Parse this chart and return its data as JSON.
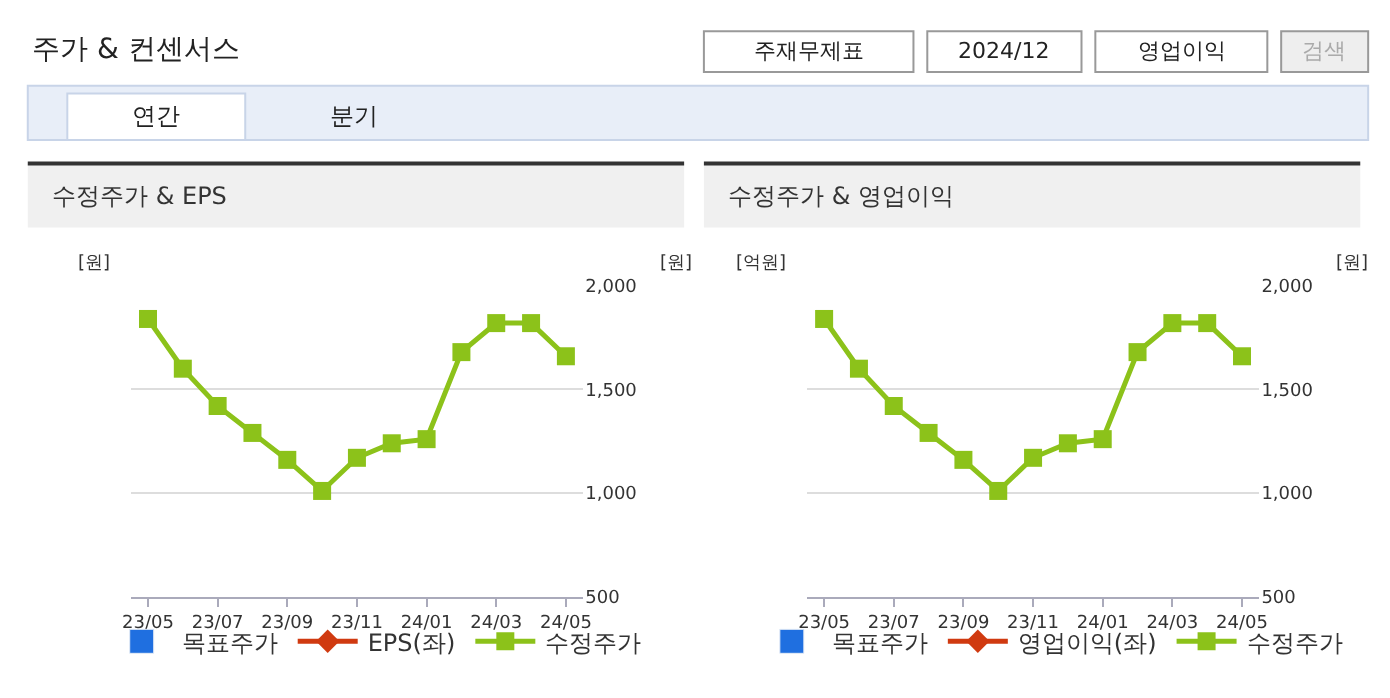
{
  "chart_data": [
    {
      "type": "other",
      "title": "주가 & 컨센서스",
      "annotations": [
        "주재무제표",
        "2024/12",
        "영업이익",
        "검색",
        "연간",
        "분기"
      ]
    },
    {
      "type": "line",
      "title": "수정주가 & EPS",
      "categories": [
        "23/05",
        null,
        "23/07",
        null,
        "23/09",
        null,
        "23/11",
        null,
        "24/01",
        null,
        "24/03",
        null,
        "24/05"
      ],
      "ylabel": "[원]",
      "y2label": "[원]",
      "y2lim": [
        500,
        2000
      ],
      "y2ticks": [
        {
          "value": 500,
          "label": "500"
        },
        {
          "value": 1000,
          "label": "1,000"
        },
        {
          "value": 1500,
          "label": "1,500"
        },
        {
          "value": 2000,
          "label": "2,000"
        }
      ],
      "grid": "y",
      "legend": "bottom",
      "series": [
        {
          "name": "목표주가",
          "type": "bar",
          "color": "#1f6fe0",
          "values": [
            null,
            null,
            null,
            null,
            null,
            null,
            null,
            null,
            null,
            null,
            null,
            null,
            null
          ]
        },
        {
          "name": "EPS(좌)",
          "type": "line",
          "marker": "diamond",
          "color": "#d03a10",
          "values": [
            null,
            null,
            null,
            null,
            null,
            null,
            null,
            null,
            null,
            null,
            null,
            null,
            null
          ]
        },
        {
          "name": "수정주가",
          "type": "line",
          "marker": "square",
          "axis": "y2",
          "color": "#8cc21a",
          "values": [
            1840,
            1600,
            1420,
            1290,
            1160,
            1010,
            1170,
            1240,
            1260,
            1680,
            1820,
            1820,
            1660
          ]
        }
      ]
    },
    {
      "type": "line",
      "title": "수정주가 & 영업이익",
      "categories": [
        "23/05",
        null,
        "23/07",
        null,
        "23/09",
        null,
        "23/11",
        null,
        "24/01",
        null,
        "24/03",
        null,
        "24/05"
      ],
      "ylabel": "[억원]",
      "y2label": "[원]",
      "y2lim": [
        500,
        2000
      ],
      "y2ticks": [
        {
          "value": 500,
          "label": "500"
        },
        {
          "value": 1000,
          "label": "1,000"
        },
        {
          "value": 1500,
          "label": "1,500"
        },
        {
          "value": 2000,
          "label": "2,000"
        }
      ],
      "grid": "y",
      "legend": "bottom",
      "series": [
        {
          "name": "목표주가",
          "type": "bar",
          "color": "#1f6fe0",
          "values": [
            null,
            null,
            null,
            null,
            null,
            null,
            null,
            null,
            null,
            null,
            null,
            null,
            null
          ]
        },
        {
          "name": "영업이익(좌)",
          "type": "line",
          "marker": "diamond",
          "color": "#d03a10",
          "values": [
            null,
            null,
            null,
            null,
            null,
            null,
            null,
            null,
            null,
            null,
            null,
            null,
            null
          ]
        },
        {
          "name": "수정주가",
          "type": "line",
          "marker": "square",
          "axis": "y2",
          "color": "#8cc21a",
          "values": [
            1840,
            1600,
            1420,
            1290,
            1160,
            1010,
            1170,
            1240,
            1260,
            1680,
            1820,
            1820,
            1660
          ]
        }
      ]
    }
  ]
}
